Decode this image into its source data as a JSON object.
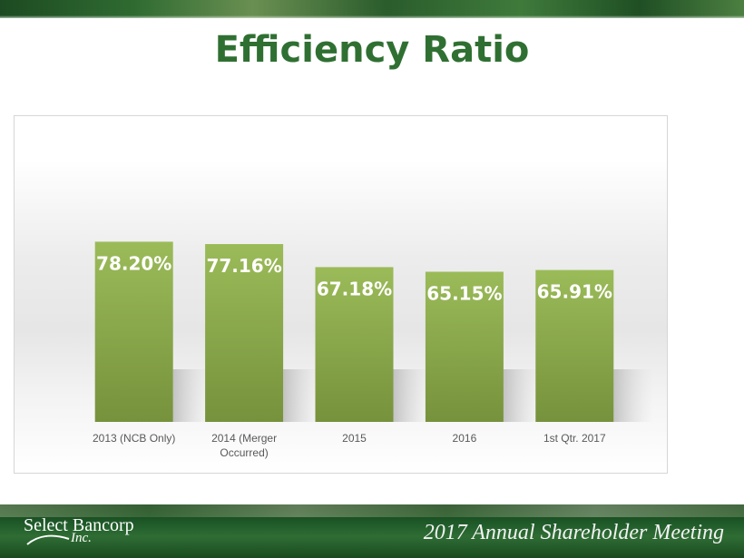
{
  "slide": {
    "title": "Efficiency Ratio",
    "footer_title": "2017 Annual Shareholder Meeting"
  },
  "logo": {
    "main": "Select Bancorp",
    "sub": "Inc."
  },
  "colors": {
    "title": "#2f7032",
    "bar_top": "#9bbb59",
    "bar_bottom": "#76923c",
    "bar_label": "#ffffff",
    "axis_label": "#595959"
  },
  "chart_data": {
    "type": "bar",
    "title": "",
    "xlabel": "",
    "ylabel": "",
    "ylim": [
      0,
      100
    ],
    "grid": false,
    "legend": "none",
    "categories": [
      [
        "2013 (NCB Only)"
      ],
      [
        "2014 (Merger",
        "Occurred)"
      ],
      [
        "2015"
      ],
      [
        "2016"
      ],
      [
        "1st Qtr. 2017"
      ]
    ],
    "values": [
      78.2,
      77.16,
      67.18,
      65.15,
      65.91
    ],
    "data_labels": [
      "78.20%",
      "77.16%",
      "67.18%",
      "65.15%",
      "65.91%"
    ]
  }
}
